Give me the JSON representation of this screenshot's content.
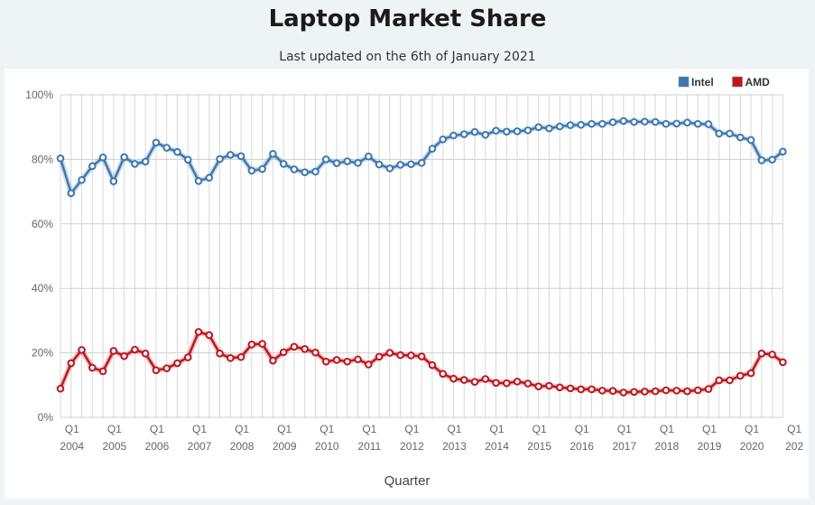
{
  "page": {
    "title": "Laptop Market Share",
    "subtitle": "Last updated on the 6th of January 2021"
  },
  "chart_data": {
    "type": "line",
    "title": "Laptop Market Share",
    "subtitle": "Last updated on the 6th of January 2021",
    "xlabel": "Quarter",
    "ylabel": "",
    "ylim": [
      0,
      100
    ],
    "y_ticks": [
      "0%",
      "20%",
      "40%",
      "60%",
      "80%",
      "100%"
    ],
    "y_tick_values": [
      0,
      20,
      40,
      60,
      80,
      100
    ],
    "x_tick_labels": [
      {
        "q": "Q1",
        "year": "2004"
      },
      {
        "q": "Q1",
        "year": "2005"
      },
      {
        "q": "Q1",
        "year": "2006"
      },
      {
        "q": "Q1",
        "year": "2007"
      },
      {
        "q": "Q1",
        "year": "2008"
      },
      {
        "q": "Q1",
        "year": "2009"
      },
      {
        "q": "Q1",
        "year": "2010"
      },
      {
        "q": "Q1",
        "year": "2011"
      },
      {
        "q": "Q1",
        "year": "2012"
      },
      {
        "q": "Q1",
        "year": "2013"
      },
      {
        "q": "Q1",
        "year": "2014"
      },
      {
        "q": "Q1",
        "year": "2015"
      },
      {
        "q": "Q1",
        "year": "2016"
      },
      {
        "q": "Q1",
        "year": "2017"
      },
      {
        "q": "Q1",
        "year": "2018"
      },
      {
        "q": "Q1",
        "year": "2019"
      },
      {
        "q": "Q1",
        "year": "2020"
      },
      {
        "q": "Q1",
        "year": "202"
      }
    ],
    "x_start": "Q4 2003",
    "x_end": "Q4 2020",
    "grid": true,
    "legend": "top-right",
    "series": [
      {
        "name": "Intel",
        "color": "#3c78b4",
        "values": [
          80.3,
          69.5,
          73.6,
          77.9,
          80.6,
          73.2,
          80.7,
          78.6,
          79.3,
          85.2,
          83.6,
          82.3,
          79.9,
          73.3,
          74.3,
          80.1,
          81.4,
          81.0,
          76.5,
          77.0,
          81.7,
          78.6,
          76.9,
          76.0,
          76.2,
          80.0,
          78.8,
          79.4,
          78.9,
          80.9,
          78.4,
          77.2,
          78.3,
          78.5,
          78.9,
          83.3,
          86.2,
          87.4,
          87.8,
          88.5,
          87.6,
          88.9,
          88.6,
          88.7,
          89.0,
          90.0,
          89.6,
          90.2,
          90.6,
          90.7,
          91.0,
          91.0,
          91.5,
          91.9,
          91.6,
          91.7,
          91.6,
          91.0,
          91.1,
          91.4,
          91.0,
          90.9,
          88.0,
          88.0,
          86.8,
          86.0,
          79.7,
          79.9,
          82.4
        ]
      },
      {
        "name": "AMD",
        "color": "#c3141c",
        "values": [
          8.9,
          16.8,
          20.9,
          15.4,
          14.3,
          20.6,
          19.0,
          21.0,
          19.8,
          14.6,
          15.2,
          16.8,
          18.6,
          26.5,
          25.5,
          19.8,
          18.4,
          18.7,
          22.6,
          22.8,
          17.6,
          20.2,
          21.9,
          21.2,
          20.1,
          17.3,
          17.8,
          17.3,
          18.0,
          16.4,
          18.8,
          20.0,
          19.3,
          19.2,
          18.9,
          16.2,
          13.5,
          12.0,
          11.6,
          11.0,
          11.9,
          10.7,
          10.6,
          11.1,
          10.5,
          9.6,
          9.8,
          9.3,
          9.0,
          8.7,
          8.7,
          8.3,
          8.2,
          7.7,
          7.9,
          8.0,
          8.1,
          8.4,
          8.3,
          8.1,
          8.4,
          8.8,
          11.5,
          11.5,
          12.9,
          13.7,
          19.8,
          19.5,
          17.1
        ]
      }
    ]
  }
}
